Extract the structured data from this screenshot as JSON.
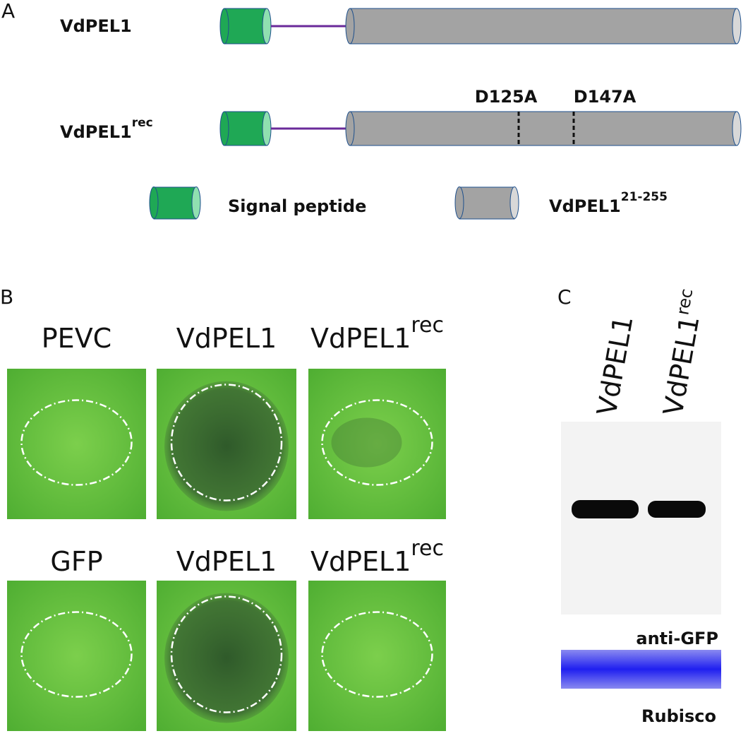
{
  "panel_a": {
    "label": "A",
    "constructs": [
      {
        "name": "VdPEL1"
      },
      {
        "name": "VdPEL1",
        "superscript": "rec",
        "mutations": [
          "D125A",
          "D147A"
        ]
      }
    ],
    "legend": [
      {
        "label": "Signal peptide"
      },
      {
        "label": "VdPEL1",
        "superscript": "21-255"
      }
    ]
  },
  "panel_b": {
    "label": "B",
    "rows": [
      [
        {
          "name": "PEVC"
        },
        {
          "name": "VdPEL1"
        },
        {
          "name": "VdPEL1",
          "superscript": "rec"
        }
      ],
      [
        {
          "name": "GFP"
        },
        {
          "name": "VdPEL1"
        },
        {
          "name": "VdPEL1",
          "superscript": "rec"
        }
      ]
    ]
  },
  "panel_c": {
    "label": "C",
    "lanes": [
      {
        "name": "VdPEL1"
      },
      {
        "name": "VdPEL1",
        "superscript": "rec"
      }
    ],
    "blots": [
      "anti-GFP",
      "Rubisco"
    ]
  }
}
